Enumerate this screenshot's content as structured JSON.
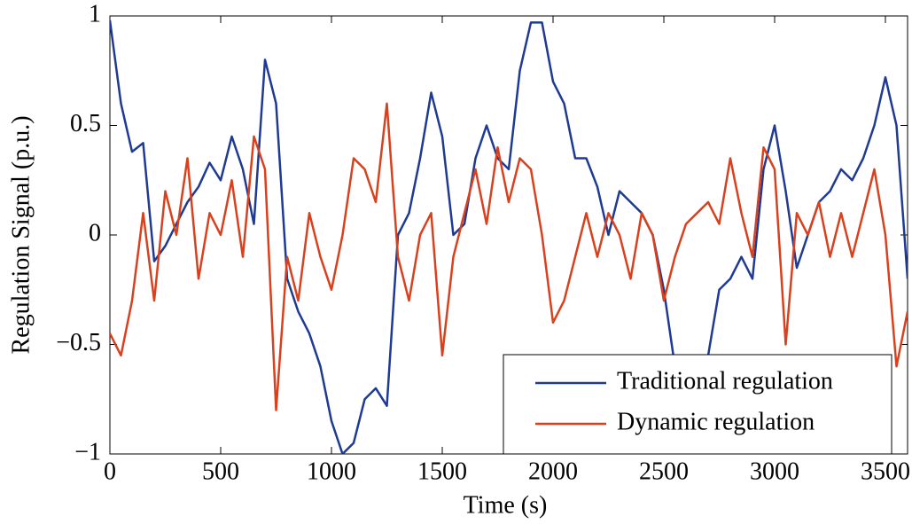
{
  "chart_data": {
    "type": "line",
    "xlabel": "Time (s)",
    "ylabel": "Regulation Signal (p.u.)",
    "x": [
      0,
      50,
      100,
      150,
      200,
      250,
      300,
      350,
      400,
      450,
      500,
      550,
      600,
      650,
      700,
      750,
      800,
      850,
      900,
      950,
      1000,
      1050,
      1100,
      1150,
      1200,
      1250,
      1300,
      1350,
      1400,
      1450,
      1500,
      1550,
      1600,
      1650,
      1700,
      1750,
      1800,
      1850,
      1900,
      1950,
      2000,
      2050,
      2100,
      2150,
      2200,
      2250,
      2300,
      2350,
      2400,
      2450,
      2500,
      2550,
      2600,
      2650,
      2700,
      2750,
      2800,
      2850,
      2900,
      2950,
      3000,
      3050,
      3100,
      3150,
      3200,
      3250,
      3300,
      3350,
      3400,
      3450,
      3500,
      3550,
      3600
    ],
    "series": [
      {
        "name": "Traditional regulation",
        "color": "#1f3a93",
        "values": [
          0.98,
          0.6,
          0.38,
          0.42,
          -0.12,
          -0.05,
          0.05,
          0.15,
          0.22,
          0.33,
          0.25,
          0.45,
          0.3,
          0.05,
          0.8,
          0.6,
          -0.2,
          -0.35,
          -0.45,
          -0.6,
          -0.85,
          -1.0,
          -0.95,
          -0.75,
          -0.7,
          -0.78,
          0.0,
          0.1,
          0.35,
          0.65,
          0.45,
          0.0,
          0.05,
          0.35,
          0.5,
          0.35,
          0.3,
          0.75,
          0.97,
          0.97,
          0.7,
          0.6,
          0.35,
          0.35,
          0.22,
          0.0,
          0.2,
          0.15,
          0.1,
          0.0,
          -0.25,
          -0.6,
          -0.8,
          -0.7,
          -0.55,
          -0.25,
          -0.2,
          -0.1,
          -0.2,
          0.3,
          0.5,
          0.2,
          -0.15,
          0.0,
          0.15,
          0.2,
          0.3,
          0.25,
          0.35,
          0.5,
          0.72,
          0.5,
          -0.2
        ]
      },
      {
        "name": "Dynamic regulation",
        "color": "#d9411e",
        "values": [
          -0.45,
          -0.55,
          -0.3,
          0.1,
          -0.3,
          0.2,
          0.0,
          0.35,
          -0.2,
          0.1,
          0.0,
          0.25,
          -0.1,
          0.45,
          0.3,
          -0.8,
          -0.1,
          -0.3,
          0.1,
          -0.1,
          -0.25,
          0.0,
          0.35,
          0.3,
          0.15,
          0.6,
          -0.1,
          -0.3,
          0.0,
          0.1,
          -0.55,
          -0.1,
          0.1,
          0.3,
          0.05,
          0.4,
          0.15,
          0.35,
          0.3,
          0.0,
          -0.4,
          -0.3,
          -0.1,
          0.1,
          -0.1,
          0.1,
          0.0,
          -0.2,
          0.1,
          0.0,
          -0.3,
          -0.1,
          0.05,
          0.1,
          0.15,
          0.05,
          0.35,
          0.1,
          -0.1,
          0.4,
          0.3,
          -0.5,
          0.1,
          0.0,
          0.15,
          -0.1,
          0.1,
          -0.1,
          0.1,
          0.3,
          0.0,
          -0.6,
          -0.35
        ]
      }
    ],
    "xlim": [
      0,
      3600
    ],
    "ylim": [
      -1,
      1
    ],
    "xticks": [
      0,
      500,
      1000,
      1500,
      2000,
      2500,
      3000,
      3500
    ],
    "yticks": [
      {
        "value": -1,
        "label": "−1"
      },
      {
        "value": -0.5,
        "label": "−0.5"
      },
      0,
      0.5,
      1
    ],
    "grid": false,
    "legend": "lower right"
  }
}
